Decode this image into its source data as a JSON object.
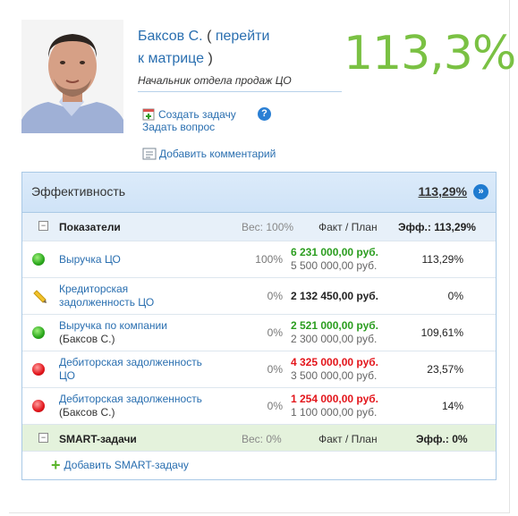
{
  "employee": {
    "name": "Баксов С.",
    "link_paren_open": "(",
    "link_text_1": "перейти",
    "link_text_2": "к матрице",
    "link_paren_close": ")",
    "position": "Начальник отдела продаж ЦО",
    "overall_percent": "113,3%"
  },
  "actions": {
    "create_task": "Создать задачу",
    "ask_question": "Задать вопрос",
    "help": "?",
    "add_comment": "Добавить комментарий"
  },
  "efficiency": {
    "title": "Эффективность",
    "total": "113,29%",
    "go_icon": "»"
  },
  "indicators": {
    "title": "Показатели",
    "weight": "Вес: 100%",
    "fact_plan": "Факт / План",
    "eff": "Эфф.: 113,29%",
    "rows": [
      {
        "status": "green",
        "name_1": "Выручка ЦО",
        "name_2": "",
        "weight": "100%",
        "fact": "6 231 000,00 руб.",
        "plan": "5 500 000,00 руб.",
        "eff": "113,29%"
      },
      {
        "status": "pencil",
        "name_1": "Кредиторская",
        "name_2": "задолженность ЦО",
        "weight": "0%",
        "fact": "2 132 450,00 руб.",
        "plan": "",
        "eff": "0%"
      },
      {
        "status": "green",
        "name_1": "Выручка по компании",
        "name_2": "(Баксов С.)",
        "weight": "0%",
        "fact": "2 521 000,00 руб.",
        "plan": "2 300 000,00 руб.",
        "eff": "109,61%"
      },
      {
        "status": "red",
        "name_1": "Дебиторская задолженность",
        "name_2": "ЦО",
        "weight": "0%",
        "fact": "4 325 000,00 руб.",
        "plan": "3 500 000,00 руб.",
        "eff": "23,57%"
      },
      {
        "status": "red",
        "name_1": "Дебиторская задолженность",
        "name_2": "(Баксов С.)",
        "weight": "0%",
        "fact": "1 254 000,00 руб.",
        "plan": "1 100 000,00 руб.",
        "eff": "14%"
      }
    ]
  },
  "smart": {
    "title": "SMART-задачи",
    "weight": "Вес: 0%",
    "fact_plan": "Факт / План",
    "eff": "Эфф.: 0%",
    "add_label": "Добавить SMART-задачу"
  },
  "colors": {
    "accent_green": "#7ac143",
    "link_blue": "#2a6fb0",
    "fact_green": "#2b9d1f",
    "fact_red": "#e3151b"
  }
}
